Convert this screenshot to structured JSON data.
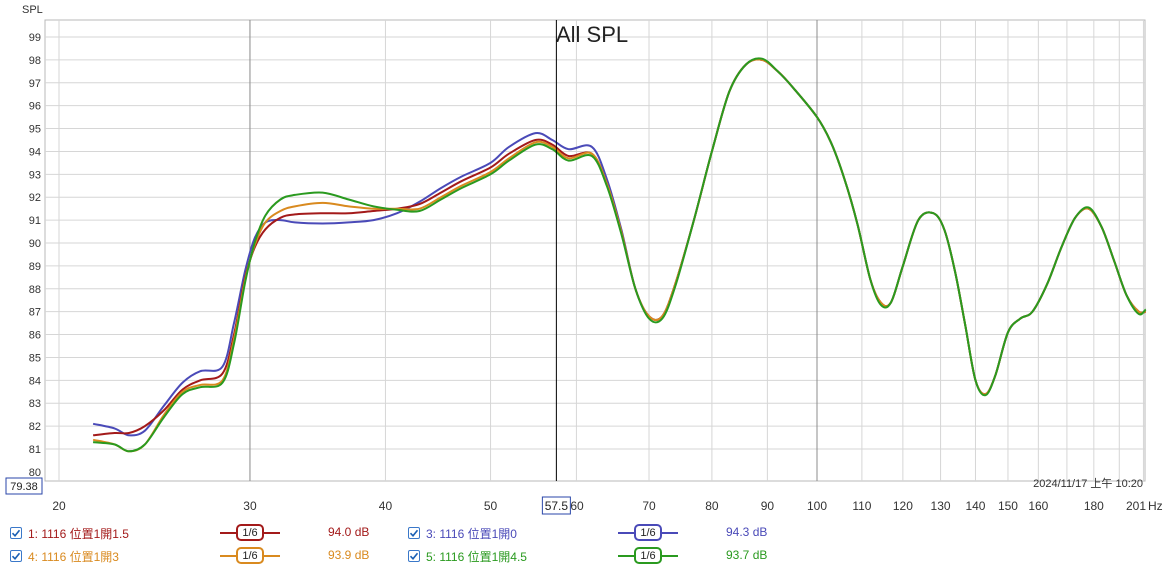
{
  "chart_data": {
    "type": "line",
    "title": "All SPL",
    "ylabel": "SPL",
    "xunit": "Hz",
    "xscale": "log",
    "xlim": [
      18,
      201
    ],
    "ylim": [
      80,
      100
    ],
    "grid": true,
    "x_tick_labels": [
      "20",
      "30",
      "40",
      "50",
      "57.5",
      "60",
      "70",
      "80",
      "90",
      "100",
      "110",
      "120",
      "130",
      "140",
      "150",
      "160",
      "180",
      "201"
    ],
    "x_tick_values": [
      20,
      30,
      40,
      50,
      57.5,
      60,
      70,
      80,
      90,
      100,
      110,
      120,
      130,
      140,
      150,
      160,
      180,
      201
    ],
    "y_ticks": [
      81,
      82,
      83,
      84,
      85,
      86,
      87,
      88,
      89,
      90,
      91,
      92,
      93,
      94,
      95,
      96,
      97,
      98,
      99
    ],
    "y_tick_labels": [
      "81",
      "82",
      "83",
      "84",
      "85",
      "86",
      "87",
      "88",
      "89",
      "90",
      "91",
      "92",
      "93",
      "94",
      "95",
      "96",
      "97",
      "98",
      "99"
    ],
    "cursor": {
      "x": 57.5,
      "x_label": "57.5",
      "y_label": "79.38"
    },
    "timestamp": "2024/11/17 上午 10:20",
    "series": [
      {
        "name": "1: 1116 位置1開1.5",
        "color": "#a31a1a",
        "smoothing": "1/6",
        "value_label": "94.0 dB",
        "x": [
          21.5,
          22.5,
          23.2,
          24,
          25,
          26,
          27,
          28.3,
          29,
          29.7,
          30.3,
          31,
          32,
          33,
          35,
          37,
          39,
          41,
          43,
          45,
          47,
          50,
          52,
          55,
          57,
          59,
          62,
          64,
          66,
          68,
          70,
          72,
          74,
          77,
          80,
          83,
          86,
          89,
          92,
          95,
          100,
          103,
          106,
          109,
          112,
          114.5,
          117,
          120,
          124,
          128,
          131,
          134,
          137,
          140,
          143,
          146,
          150,
          154,
          158,
          163,
          168,
          173,
          178,
          183,
          188,
          193,
          198,
          201
        ],
        "y": [
          81.6,
          81.7,
          81.7,
          82.0,
          82.7,
          83.6,
          84.0,
          84.3,
          86.0,
          88.5,
          89.8,
          90.6,
          91.1,
          91.25,
          91.3,
          91.3,
          91.4,
          91.5,
          91.7,
          92.2,
          92.7,
          93.3,
          93.9,
          94.5,
          94.3,
          93.8,
          93.9,
          92.6,
          90.5,
          88.0,
          86.8,
          86.8,
          88.2,
          91.0,
          94.0,
          96.6,
          97.8,
          98.0,
          97.5,
          96.8,
          95.5,
          94.4,
          92.8,
          90.8,
          88.4,
          87.4,
          87.4,
          89.0,
          91.0,
          91.3,
          90.6,
          88.8,
          86.4,
          84.0,
          83.4,
          84.2,
          86.1,
          86.7,
          87.0,
          88.2,
          89.8,
          91.1,
          91.5,
          90.7,
          89.2,
          87.7,
          87.0,
          87.0
        ]
      },
      {
        "name": "3: 1116 位置1開0",
        "color": "#4a4ab8",
        "smoothing": "1/6",
        "value_label": "94.3 dB",
        "x": [
          21.5,
          22.5,
          23.2,
          24,
          25,
          26,
          27,
          28.3,
          29,
          29.7,
          30.3,
          31,
          32,
          33,
          35,
          37,
          39,
          41,
          43,
          45,
          47,
          50,
          52,
          55,
          57,
          59,
          62,
          64,
          66,
          68,
          70,
          72,
          74,
          77,
          80,
          83,
          86,
          89,
          92,
          95,
          100,
          103,
          106,
          109,
          112,
          114.5,
          117,
          120,
          124,
          128,
          131,
          134,
          137,
          140,
          143,
          146,
          150,
          154,
          158,
          163,
          168,
          173,
          178,
          183,
          188,
          193,
          198,
          201
        ],
        "y": [
          82.1,
          81.9,
          81.6,
          81.8,
          82.9,
          83.9,
          84.4,
          84.6,
          86.5,
          88.8,
          90.2,
          90.9,
          91.0,
          90.9,
          90.85,
          90.9,
          91.0,
          91.3,
          91.8,
          92.4,
          92.9,
          93.5,
          94.2,
          94.8,
          94.5,
          94.1,
          94.2,
          92.8,
          90.6,
          88.0,
          86.8,
          86.8,
          88.2,
          91.0,
          94.0,
          96.6,
          97.8,
          98.0,
          97.5,
          96.8,
          95.5,
          94.4,
          92.8,
          90.8,
          88.4,
          87.4,
          87.4,
          89.0,
          91.0,
          91.3,
          90.6,
          88.8,
          86.4,
          84.0,
          83.4,
          84.2,
          86.1,
          86.7,
          87.0,
          88.2,
          89.8,
          91.1,
          91.5,
          90.7,
          89.2,
          87.7,
          87.0,
          87.0
        ]
      },
      {
        "name": "4: 1116 位置1開3",
        "color": "#d98a1f",
        "smoothing": "1/6",
        "value_label": "93.9 dB",
        "x": [
          21.5,
          22.5,
          23.2,
          24,
          25,
          26,
          27,
          28.3,
          29,
          29.7,
          30.3,
          31,
          32,
          33,
          35,
          37,
          39,
          41,
          43,
          45,
          47,
          50,
          52,
          55,
          57,
          59,
          62,
          64,
          66,
          68,
          70,
          72,
          74,
          77,
          80,
          83,
          86,
          89,
          92,
          95,
          100,
          103,
          106,
          109,
          112,
          114.5,
          117,
          120,
          124,
          128,
          131,
          134,
          137,
          140,
          143,
          146,
          150,
          154,
          158,
          163,
          168,
          173,
          178,
          183,
          188,
          193,
          198,
          201
        ],
        "y": [
          81.4,
          81.2,
          80.9,
          81.2,
          82.5,
          83.5,
          83.8,
          84.0,
          85.8,
          88.4,
          89.9,
          90.9,
          91.4,
          91.6,
          91.75,
          91.6,
          91.5,
          91.5,
          91.5,
          92.0,
          92.5,
          93.1,
          93.7,
          94.4,
          94.2,
          93.7,
          93.9,
          92.6,
          90.5,
          88.0,
          86.8,
          86.8,
          88.2,
          91.0,
          94.0,
          96.6,
          97.8,
          98.0,
          97.5,
          96.8,
          95.5,
          94.4,
          92.8,
          90.8,
          88.4,
          87.4,
          87.4,
          89.0,
          91.0,
          91.3,
          90.6,
          88.8,
          86.4,
          84.0,
          83.4,
          84.2,
          86.1,
          86.7,
          87.0,
          88.2,
          89.8,
          91.1,
          91.5,
          90.7,
          89.2,
          87.7,
          87.0,
          87.0
        ]
      },
      {
        "name": "5: 1116 位置1開4.5",
        "color": "#2a9a1f",
        "smoothing": "1/6",
        "value_label": "93.7 dB",
        "x": [
          21.5,
          22.5,
          23.2,
          24,
          25,
          26,
          27,
          28.3,
          29,
          29.7,
          30.3,
          31,
          32,
          33,
          35,
          37,
          39,
          41,
          43,
          45,
          47,
          50,
          52,
          55,
          57,
          59,
          62,
          64,
          66,
          68,
          70,
          72,
          74,
          77,
          80,
          83,
          86,
          89,
          92,
          95,
          100,
          103,
          106,
          109,
          112,
          114.5,
          117,
          120,
          124,
          128,
          131,
          134,
          137,
          140,
          143,
          146,
          150,
          154,
          158,
          163,
          168,
          173,
          178,
          183,
          188,
          193,
          198,
          201
        ],
        "y": [
          81.3,
          81.2,
          80.9,
          81.2,
          82.4,
          83.4,
          83.7,
          83.9,
          85.6,
          88.3,
          90.0,
          91.2,
          91.9,
          92.1,
          92.2,
          91.9,
          91.6,
          91.45,
          91.4,
          91.9,
          92.4,
          93.0,
          93.6,
          94.3,
          94.1,
          93.6,
          93.8,
          92.5,
          90.4,
          88.0,
          86.7,
          86.7,
          88.1,
          91.0,
          94.0,
          96.6,
          97.8,
          98.05,
          97.5,
          96.8,
          95.5,
          94.4,
          92.8,
          90.8,
          88.4,
          87.3,
          87.4,
          89.0,
          91.0,
          91.3,
          90.6,
          88.8,
          86.4,
          84.0,
          83.35,
          84.2,
          86.1,
          86.7,
          87.0,
          88.2,
          89.8,
          91.1,
          91.55,
          90.7,
          89.2,
          87.7,
          86.9,
          87.1
        ]
      }
    ]
  }
}
